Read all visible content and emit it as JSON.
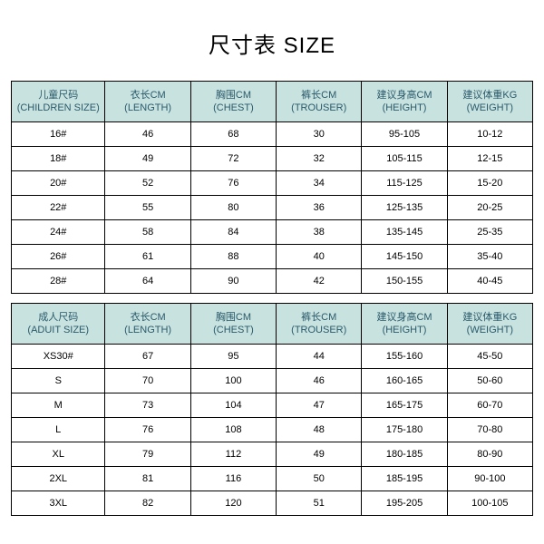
{
  "title": "尺寸表 SIZE",
  "header_bg": "#c8e2e0",
  "header_fg": "#2a5a6a",
  "border": "#000000",
  "children": {
    "headers": [
      "儿童尺码\n(CHILDREN SIZE)",
      "衣长CM\n(LENGTH)",
      "胸围CM\n(CHEST)",
      "裤长CM\n(TROUSER)",
      "建议身高CM\n(HEIGHT)",
      "建议体重KG\n(WEIGHT)"
    ],
    "rows": [
      [
        "16#",
        "46",
        "68",
        "30",
        "95-105",
        "10-12"
      ],
      [
        "18#",
        "49",
        "72",
        "32",
        "105-115",
        "12-15"
      ],
      [
        "20#",
        "52",
        "76",
        "34",
        "115-125",
        "15-20"
      ],
      [
        "22#",
        "55",
        "80",
        "36",
        "125-135",
        "20-25"
      ],
      [
        "24#",
        "58",
        "84",
        "38",
        "135-145",
        "25-35"
      ],
      [
        "26#",
        "61",
        "88",
        "40",
        "145-150",
        "35-40"
      ],
      [
        "28#",
        "64",
        "90",
        "42",
        "150-155",
        "40-45"
      ]
    ]
  },
  "adult": {
    "headers": [
      "成人尺码\n(ADUIT SIZE)",
      "衣长CM\n(LENGTH)",
      "胸围CM\n(CHEST)",
      "裤长CM\n(TROUSER)",
      "建议身高CM\n(HEIGHT)",
      "建议体重KG\n(WEIGHT)"
    ],
    "rows": [
      [
        "XS30#",
        "67",
        "95",
        "44",
        "155-160",
        "45-50"
      ],
      [
        "S",
        "70",
        "100",
        "46",
        "160-165",
        "50-60"
      ],
      [
        "M",
        "73",
        "104",
        "47",
        "165-175",
        "60-70"
      ],
      [
        "L",
        "76",
        "108",
        "48",
        "175-180",
        "70-80"
      ],
      [
        "XL",
        "79",
        "112",
        "49",
        "180-185",
        "80-90"
      ],
      [
        "2XL",
        "81",
        "116",
        "50",
        "185-195",
        "90-100"
      ],
      [
        "3XL",
        "82",
        "120",
        "51",
        "195-205",
        "100-105"
      ]
    ]
  }
}
